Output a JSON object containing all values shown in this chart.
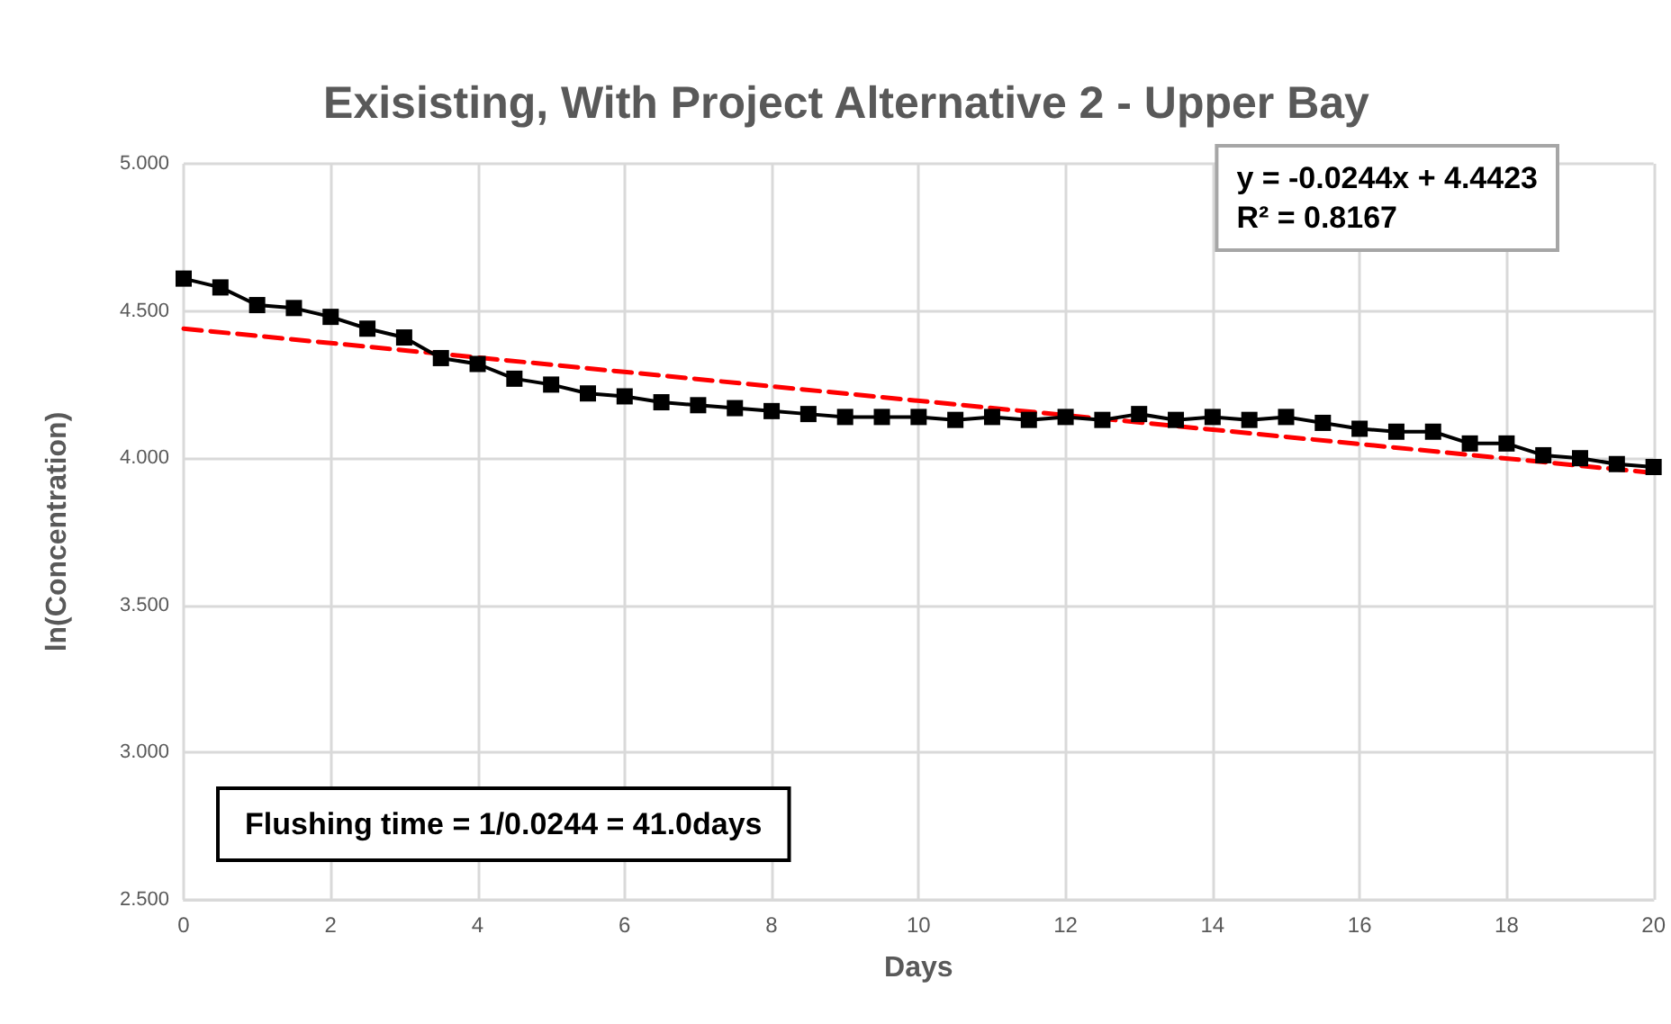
{
  "chart_data": {
    "type": "line",
    "title": "Exisisting, With Project Alternative 2 - Upper Bay",
    "xlabel": "Days",
    "ylabel": "ln(Concentration)",
    "x": [
      0,
      0.5,
      1,
      1.5,
      2,
      2.5,
      3,
      3.5,
      4,
      4.5,
      5,
      5.5,
      6,
      6.5,
      7,
      7.5,
      8,
      8.5,
      9,
      9.5,
      10,
      10.5,
      11,
      11.5,
      12,
      12.5,
      13,
      13.5,
      14,
      14.5,
      15,
      15.5,
      16,
      16.5,
      17,
      17.5,
      18,
      18.5,
      19,
      19.5,
      20
    ],
    "series": [
      {
        "color": "#000000",
        "marker": "square",
        "line_style": "solid",
        "values": [
          4.61,
          4.58,
          4.52,
          4.51,
          4.48,
          4.44,
          4.41,
          4.34,
          4.32,
          4.27,
          4.25,
          4.22,
          4.21,
          4.19,
          4.18,
          4.17,
          4.16,
          4.15,
          4.14,
          4.14,
          4.14,
          4.13,
          4.14,
          4.13,
          4.14,
          4.13,
          4.15,
          4.13,
          4.14,
          4.13,
          4.14,
          4.12,
          4.1,
          4.09,
          4.09,
          4.05,
          4.05,
          4.01,
          4.0,
          3.98,
          3.97
        ]
      },
      {
        "color": "#ff0000",
        "marker": "none",
        "line_style": "dashed",
        "x": [
          0,
          20
        ],
        "values": [
          4.44,
          3.95
        ]
      }
    ],
    "xlim": [
      0,
      20
    ],
    "xticks": [
      0,
      2,
      4,
      6,
      8,
      10,
      12,
      14,
      16,
      18,
      20
    ],
    "ylim": [
      2.5,
      5
    ],
    "yticks": [
      {
        "value": 2.5,
        "label": "2.500"
      },
      {
        "value": 3,
        "label": "3.000"
      },
      {
        "value": 3.5,
        "label": "3.500"
      },
      {
        "value": 4,
        "label": "4.000"
      },
      {
        "value": 4.5,
        "label": "4.500"
      },
      {
        "value": 5,
        "label": "5.000"
      }
    ],
    "grid": true,
    "annotations": [
      "y = -0.0244x + 4.4423\nR² = 0.8167",
      "Flushing time = 1/0.0244 = 41.0days"
    ]
  }
}
